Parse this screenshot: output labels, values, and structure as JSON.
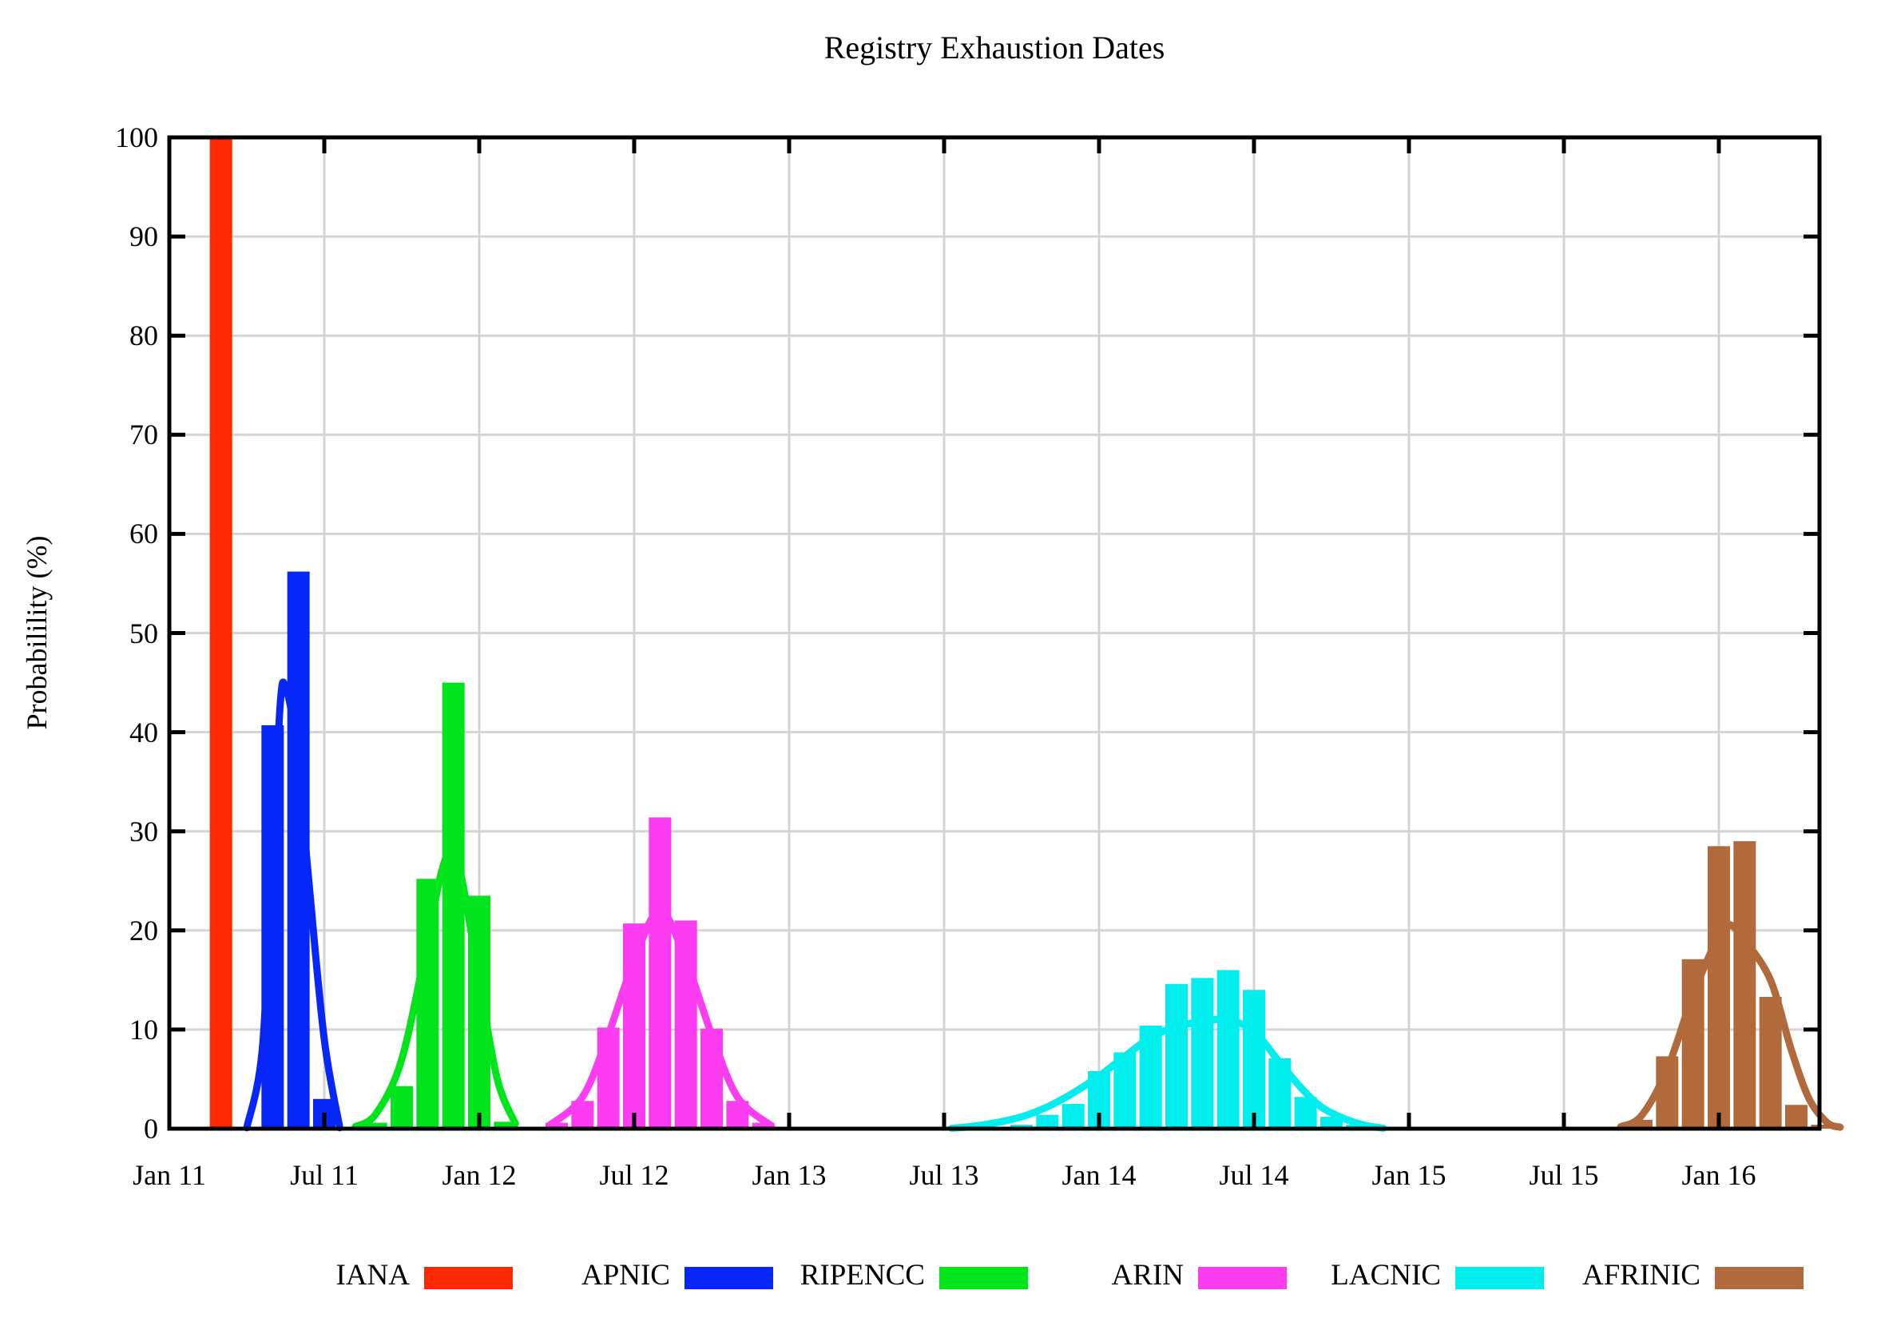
{
  "title": "Registry Exhaustion Dates",
  "y_axis_label": "Probabilility (%)",
  "chart_data": {
    "type": "bar",
    "title": "Registry Exhaustion Dates",
    "xlabel": "",
    "ylabel": "Probabilility (%)",
    "ylim": [
      0,
      100
    ],
    "grid": true,
    "legend_position": "bottom",
    "x_unit": "months_after_jan_2011",
    "x_range_months": [
      0,
      63.9
    ],
    "y_ticks": [
      {
        "v": 0,
        "label": "0"
      },
      {
        "v": 10,
        "label": "10"
      },
      {
        "v": 20,
        "label": "20"
      },
      {
        "v": 30,
        "label": "30"
      },
      {
        "v": 40,
        "label": "40"
      },
      {
        "v": 50,
        "label": "50"
      },
      {
        "v": 60,
        "label": "60"
      },
      {
        "v": 70,
        "label": "70"
      },
      {
        "v": 80,
        "label": "80"
      },
      {
        "v": 90,
        "label": "90"
      },
      {
        "v": 100,
        "label": "100"
      }
    ],
    "x_ticks": [
      {
        "m": 0,
        "label": "Jan 11"
      },
      {
        "m": 6,
        "label": "Jul 11"
      },
      {
        "m": 12,
        "label": "Jan 12"
      },
      {
        "m": 18,
        "label": "Jul 12"
      },
      {
        "m": 24,
        "label": "Jan 13"
      },
      {
        "m": 30,
        "label": "Jul 13"
      },
      {
        "m": 36,
        "label": "Jan 14"
      },
      {
        "m": 42,
        "label": "Jul 14"
      },
      {
        "m": 48,
        "label": "Jan 15"
      },
      {
        "m": 54,
        "label": "Jul 15"
      },
      {
        "m": 60,
        "label": "Jan 16"
      }
    ],
    "series": [
      {
        "name": "IANA",
        "color": "#fb2800",
        "bars": [
          {
            "m": 2,
            "v": 100
          }
        ],
        "curve": []
      },
      {
        "name": "APNIC",
        "color": "#0627f8",
        "bars": [
          {
            "m": 4,
            "v": 40.7
          },
          {
            "m": 5,
            "v": 56.2
          },
          {
            "m": 6,
            "v": 3.0
          }
        ],
        "curve": [
          [
            3.0,
            0.1
          ],
          [
            3.6,
            8
          ],
          [
            4.0,
            28
          ],
          [
            4.3,
            43
          ],
          [
            4.5,
            44.5
          ],
          [
            4.9,
            39
          ],
          [
            5.4,
            25
          ],
          [
            6.0,
            9
          ],
          [
            6.6,
            0.1
          ]
        ]
      },
      {
        "name": "RIPENCC",
        "color": "#00e41c",
        "bars": [
          {
            "m": 8,
            "v": 0.6
          },
          {
            "m": 9,
            "v": 4.3
          },
          {
            "m": 10,
            "v": 25.2
          },
          {
            "m": 11,
            "v": 45.0
          },
          {
            "m": 12,
            "v": 23.5
          },
          {
            "m": 13,
            "v": 0.7
          }
        ],
        "curve": [
          [
            7.2,
            0.2
          ],
          [
            8,
            1.5
          ],
          [
            9,
            7
          ],
          [
            10,
            19
          ],
          [
            10.5,
            25.5
          ],
          [
            10.9,
            28
          ],
          [
            11.3,
            25.5
          ],
          [
            12,
            15
          ],
          [
            12.7,
            5
          ],
          [
            13.4,
            0.5
          ]
        ]
      },
      {
        "name": "ARIN",
        "color": "#fb3cf0",
        "bars": [
          {
            "m": 15,
            "v": 0.6
          },
          {
            "m": 16,
            "v": 2.8
          },
          {
            "m": 17,
            "v": 10.2
          },
          {
            "m": 18,
            "v": 20.7
          },
          {
            "m": 19,
            "v": 31.4
          },
          {
            "m": 20,
            "v": 21.0
          },
          {
            "m": 21,
            "v": 10.1
          },
          {
            "m": 22,
            "v": 2.8
          },
          {
            "m": 23,
            "v": 0.6
          }
        ],
        "curve": [
          [
            14.7,
            0.3
          ],
          [
            16,
            3.2
          ],
          [
            17,
            9.5
          ],
          [
            18,
            17
          ],
          [
            19,
            22
          ],
          [
            20,
            17
          ],
          [
            21,
            9.5
          ],
          [
            22,
            3.2
          ],
          [
            23.3,
            0.3
          ]
        ]
      },
      {
        "name": "LACNIC",
        "color": "#00eeee",
        "bars": [
          {
            "m": 33,
            "v": 0.4
          },
          {
            "m": 34,
            "v": 1.4
          },
          {
            "m": 35,
            "v": 2.5
          },
          {
            "m": 36,
            "v": 5.8
          },
          {
            "m": 37,
            "v": 7.7
          },
          {
            "m": 38,
            "v": 10.4
          },
          {
            "m": 39,
            "v": 14.6
          },
          {
            "m": 40,
            "v": 15.2
          },
          {
            "m": 41,
            "v": 16.0
          },
          {
            "m": 42,
            "v": 14.0
          },
          {
            "m": 43,
            "v": 7.1
          },
          {
            "m": 44,
            "v": 3.2
          },
          {
            "m": 45,
            "v": 1.2
          },
          {
            "m": 46,
            "v": 0.4
          }
        ],
        "curve": [
          [
            30.3,
            0.05
          ],
          [
            31,
            0.2
          ],
          [
            32,
            0.6
          ],
          [
            33,
            1.2
          ],
          [
            34,
            2.2
          ],
          [
            35,
            3.6
          ],
          [
            36,
            5.3
          ],
          [
            37,
            7.3
          ],
          [
            38,
            9.2
          ],
          [
            39,
            10.3
          ],
          [
            40,
            10.8
          ],
          [
            41,
            11.0
          ],
          [
            42,
            9.8
          ],
          [
            42.9,
            7.0
          ],
          [
            43.8,
            4.2
          ],
          [
            44.6,
            2.2
          ],
          [
            45.5,
            1.0
          ],
          [
            46.3,
            0.35
          ],
          [
            47,
            0.05
          ]
        ]
      },
      {
        "name": "AFRINIC",
        "color": "#b06a3c",
        "bars": [
          {
            "m": 57,
            "v": 0.9
          },
          {
            "m": 58,
            "v": 7.3
          },
          {
            "m": 59,
            "v": 17.1
          },
          {
            "m": 60,
            "v": 28.5
          },
          {
            "m": 61,
            "v": 29.0
          },
          {
            "m": 62,
            "v": 13.3
          },
          {
            "m": 63,
            "v": 2.4
          },
          {
            "m": 64,
            "v": 0.4
          }
        ],
        "curve": [
          [
            56.2,
            0.2
          ],
          [
            57,
            1.3
          ],
          [
            58,
            6
          ],
          [
            59,
            13.5
          ],
          [
            60,
            19.5
          ],
          [
            60.4,
            20.6
          ],
          [
            61,
            19
          ],
          [
            62,
            15
          ],
          [
            62.8,
            8
          ],
          [
            63.5,
            3
          ],
          [
            64.2,
            0.6
          ],
          [
            64.7,
            0.15
          ]
        ]
      }
    ]
  },
  "legend": {
    "entries": [
      {
        "label": "IANA",
        "color": "#fb2800"
      },
      {
        "label": "APNIC",
        "color": "#0627f8"
      },
      {
        "label": "RIPENCC",
        "color": "#00e41c"
      },
      {
        "label": "ARIN",
        "color": "#fb3cf0"
      },
      {
        "label": "LACNIC",
        "color": "#00eeee"
      },
      {
        "label": "AFRINIC",
        "color": "#b06a3c"
      }
    ]
  }
}
